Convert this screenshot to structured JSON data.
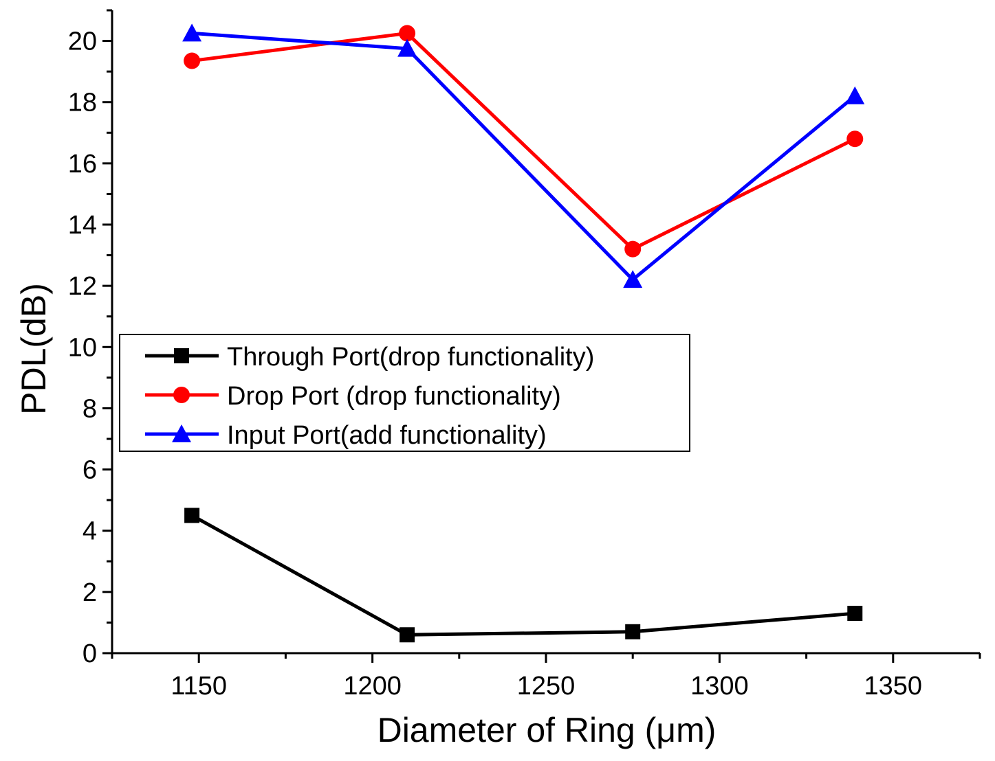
{
  "chart_data": {
    "type": "line",
    "title": "",
    "xlabel": "Diameter of Ring (μm)",
    "ylabel": "PDL(dB)",
    "xlim": [
      1125,
      1375
    ],
    "ylim": [
      0,
      21
    ],
    "xticks": [
      1150,
      1200,
      1250,
      1300,
      1350
    ],
    "yticks": [
      0,
      2,
      4,
      6,
      8,
      10,
      12,
      14,
      16,
      18,
      20
    ],
    "x": [
      1148,
      1210,
      1275,
      1339
    ],
    "legend_position": "center-left",
    "series": [
      {
        "name": "Through Port(drop functionality)",
        "color": "#000000",
        "marker": "square",
        "values": [
          4.5,
          0.6,
          0.7,
          1.3
        ]
      },
      {
        "name": "Drop Port (drop functionality)",
        "color": "#ff0000",
        "marker": "circle",
        "values": [
          19.35,
          20.25,
          13.2,
          16.8
        ]
      },
      {
        "name": "Input Port(add functionality)",
        "color": "#0000ff",
        "marker": "triangle",
        "values": [
          20.25,
          19.75,
          12.2,
          18.2
        ]
      }
    ]
  }
}
